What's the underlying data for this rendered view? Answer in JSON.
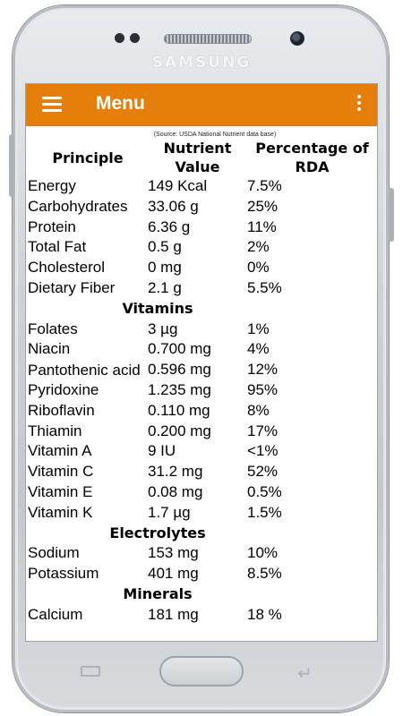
{
  "device": {
    "brand": "SAMSUNG"
  },
  "app_bar": {
    "title": "Menu",
    "color": "#e67e0c"
  },
  "source_note": "(Source: USDA National Nutrient data base)",
  "table": {
    "headers": {
      "principle": "Principle",
      "value": "Nutrient Value",
      "rda": "Percentage of RDA"
    },
    "rows": [
      {
        "principle": "Energy",
        "value": "149 Kcal",
        "rda": "7.5%"
      },
      {
        "principle": "Carbohydrates",
        "value": "33.06 g",
        "rda": "25%"
      },
      {
        "principle": "Protein",
        "value": "6.36 g",
        "rda": "11%"
      },
      {
        "principle": "Total Fat",
        "value": "0.5 g",
        "rda": "2%"
      },
      {
        "principle": "Cholesterol",
        "value": "0 mg",
        "rda": "0%"
      },
      {
        "principle": "Dietary Fiber",
        "value": "2.1 g",
        "rda": "5.5%"
      }
    ],
    "section_vitamins": "Vitamins",
    "vitamins": [
      {
        "principle": "Folates",
        "value": "3 µg",
        "rda": "1%"
      },
      {
        "principle": "Niacin",
        "value": "0.700 mg",
        "rda": "4%"
      },
      {
        "principle": "Pantothenic acid",
        "value": "0.596 mg",
        "rda": "12%"
      },
      {
        "principle": "Pyridoxine",
        "value": "1.235 mg",
        "rda": "95%"
      },
      {
        "principle": "Riboflavin",
        "value": "0.110 mg",
        "rda": "8%"
      },
      {
        "principle": "Thiamin",
        "value": "0.200 mg",
        "rda": "17%"
      },
      {
        "principle": "Vitamin A",
        "value": "9 IU",
        "rda": "<1%"
      },
      {
        "principle": "Vitamin C",
        "value": "31.2 mg",
        "rda": "52%"
      },
      {
        "principle": "Vitamin E",
        "value": "0.08 mg",
        "rda": "0.5%"
      },
      {
        "principle": "Vitamin K",
        "value": "1.7 µg",
        "rda": "1.5%"
      }
    ],
    "section_electrolytes": "Electrolytes",
    "electrolytes": [
      {
        "principle": "Sodium",
        "value": "153 mg",
        "rda": "10%"
      },
      {
        "principle": "Potassium",
        "value": "401 mg",
        "rda": "8.5%"
      }
    ],
    "section_minerals": "Minerals",
    "minerals": [
      {
        "principle": "Calcium",
        "value": "181 mg",
        "rda": "18 %"
      }
    ]
  }
}
